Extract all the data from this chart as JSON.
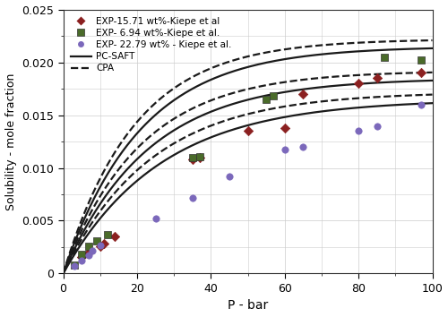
{
  "xlabel": "P - bar",
  "ylabel": "Solubility - mole fraction",
  "xlim": [
    0,
    100
  ],
  "ylim": [
    0,
    0.025
  ],
  "yticks": [
    0,
    0.005,
    0.01,
    0.015,
    0.02,
    0.025
  ],
  "xticks": [
    0,
    20,
    40,
    60,
    80,
    100
  ],
  "background_color": "#ffffff",
  "grid_color": "#cccccc",
  "exp_15p71_x": [
    5,
    7,
    10,
    11,
    14,
    35,
    37,
    50,
    60,
    65,
    80,
    85,
    97
  ],
  "exp_15p71_y": [
    0.00155,
    0.002,
    0.00255,
    0.0028,
    0.0035,
    0.0108,
    0.011,
    0.01355,
    0.0138,
    0.017,
    0.018,
    0.0185,
    0.019
  ],
  "exp_15p71_color": "#8B2020",
  "exp_15p71_marker": "D",
  "exp_15p71_label": "EXP-15.71 wt%-Kiepe et al",
  "exp_6p94_x": [
    3,
    5,
    7,
    9,
    12,
    35,
    37,
    55,
    57,
    87,
    97
  ],
  "exp_6p94_y": [
    0.0008,
    0.0018,
    0.0026,
    0.00305,
    0.0037,
    0.011,
    0.0111,
    0.01645,
    0.0168,
    0.02045,
    0.0202
  ],
  "exp_6p94_color": "#4A6B2A",
  "exp_6p94_marker": "s",
  "exp_6p94_label": "EXP- 6.94 wt%-Kiepe et al.",
  "exp_22p79_x": [
    3,
    5,
    7,
    8,
    10,
    25,
    35,
    45,
    60,
    65,
    80,
    85,
    97
  ],
  "exp_22p79_y": [
    0.00075,
    0.0012,
    0.00175,
    0.0022,
    0.0027,
    0.0052,
    0.0072,
    0.0092,
    0.01175,
    0.012,
    0.01355,
    0.01395,
    0.01595
  ],
  "exp_22p79_color": "#7B68BB",
  "exp_22p79_marker": "o",
  "exp_22p79_label": "EXP- 22.79 wt% - Kiepe et al.",
  "curve_color": "#1a1a1a",
  "line_width": 1.6,
  "pcsaft_label": "PC-SAFT",
  "cpa_label": "CPA",
  "figsize": [
    5.0,
    3.54
  ],
  "dpi": 100
}
